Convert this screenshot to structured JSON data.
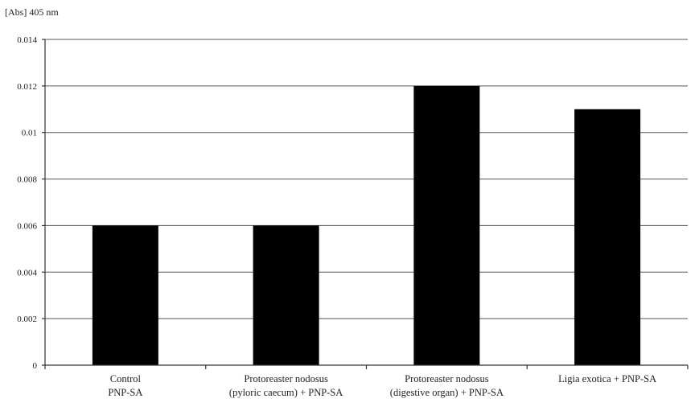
{
  "chart_data": {
    "type": "bar",
    "unit_label": "[Abs]  405 nm",
    "categories": [
      [
        "Control",
        "PNP-SA"
      ],
      [
        "Protoreaster nodosus",
        "(pyloric caecum) + PNP-SA"
      ],
      [
        "Protoreaster nodosus",
        "(digestive organ) + PNP-SA"
      ],
      [
        "Ligia exotica + PNP-SA"
      ]
    ],
    "values": [
      0.006,
      0.006,
      0.012,
      0.011
    ],
    "ylim": [
      0,
      0.014
    ],
    "yticks": [
      0,
      0.002,
      0.004,
      0.006,
      0.008,
      0.01,
      0.012,
      0.014
    ],
    "ytick_labels": [
      "0",
      "0.002",
      "0.004",
      "0.006",
      "0.008",
      "0.01",
      "0.012",
      "0.014"
    ],
    "grid": true,
    "legend": "none",
    "bar_color": "#000000"
  }
}
